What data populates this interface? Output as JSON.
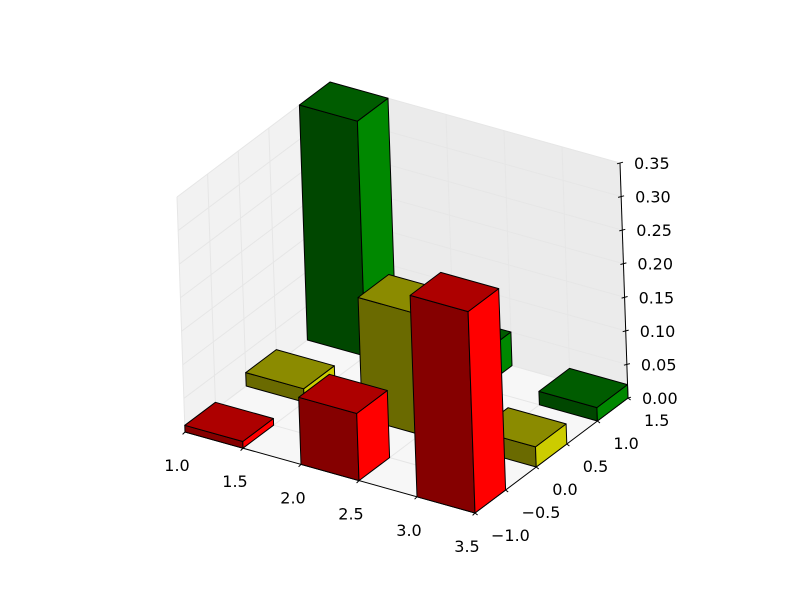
{
  "chart_data": {
    "type": "bar3d",
    "title": "",
    "xlabel": "",
    "ylabel": "",
    "zlabel": "",
    "xlim": [
      1.0,
      3.5
    ],
    "ylim": [
      -1.0,
      1.5
    ],
    "zlim": [
      0.0,
      0.35
    ],
    "x_ticks": [
      "1.0",
      "1.5",
      "2.0",
      "2.5",
      "3.0",
      "3.5"
    ],
    "y_ticks": [
      "−1.0",
      "−0.5",
      "0.0",
      "0.5",
      "1.0",
      "1.5"
    ],
    "z_ticks": [
      "0.00",
      "0.05",
      "0.10",
      "0.15",
      "0.20",
      "0.25",
      "0.30",
      "0.35"
    ],
    "grid": true,
    "colors": {
      "red": "#ff0000",
      "yellow": "#cccc00",
      "green": "#008800"
    },
    "series": [
      {
        "color": "red",
        "y": -1,
        "bars": [
          {
            "x": 1,
            "z": 0.01
          },
          {
            "x": 2,
            "z": 0.1
          },
          {
            "x": 3,
            "z": 0.3
          }
        ]
      },
      {
        "color": "yellow",
        "y": 0,
        "bars": [
          {
            "x": 1,
            "z": 0.02
          },
          {
            "x": 2,
            "z": 0.18
          },
          {
            "x": 3,
            "z": 0.03
          }
        ]
      },
      {
        "color": "green",
        "y": 1,
        "bars": [
          {
            "x": 1,
            "z": 0.35
          },
          {
            "x": 2,
            "z": 0.05
          },
          {
            "x": 3,
            "z": 0.02
          }
        ]
      }
    ]
  }
}
